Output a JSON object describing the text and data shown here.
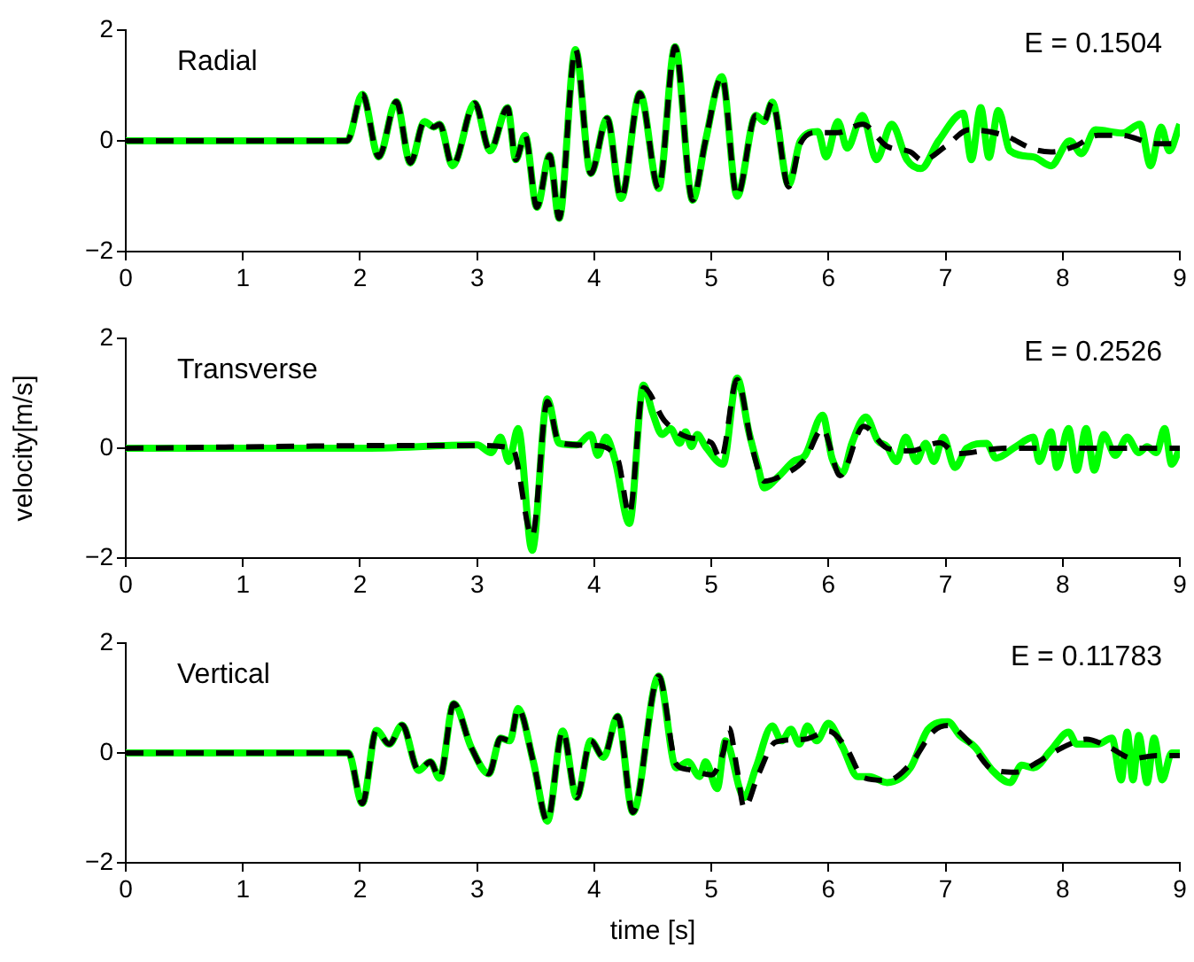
{
  "chart_data": [
    {
      "type": "line",
      "annotations": [
        "Radial",
        "E = 0.1504"
      ],
      "xlim": [
        0,
        9
      ],
      "xticks": [
        0,
        1,
        2,
        3,
        4,
        5,
        6,
        7,
        8,
        9
      ],
      "ylim": [
        -2,
        2
      ],
      "yticks": [
        -2,
        0,
        2
      ],
      "grid": false,
      "series": [
        {
          "color": "#00ff00",
          "line_style": "solid",
          "x": [
            0,
            1.89,
            2.02,
            2.16,
            2.31,
            2.43,
            2.55,
            2.63,
            2.68,
            2.79,
            2.98,
            3.11,
            3.26,
            3.33,
            3.41,
            3.51,
            3.62,
            3.7,
            3.84,
            3.97,
            4.11,
            4.23,
            4.39,
            4.55,
            4.69,
            4.84,
            4.95,
            5.09,
            5.22,
            5.38,
            5.45,
            5.52,
            5.66,
            5.76,
            5.91,
            5.98,
            6.08,
            6.16,
            6.29,
            6.41,
            6.54,
            6.67,
            6.79,
            6.94,
            7.15,
            7.22,
            7.3,
            7.37,
            7.45,
            7.55,
            7.75,
            7.9,
            8.06,
            8.16,
            8.28,
            8.51,
            8.66,
            8.75,
            8.84,
            8.91,
            9
          ],
          "values": [
            0,
            0,
            0.84,
            -0.29,
            0.71,
            -0.4,
            0.35,
            0.25,
            0.3,
            -0.45,
            0.68,
            -0.18,
            0.6,
            -0.34,
            0.1,
            -1.2,
            -0.26,
            -1.4,
            1.65,
            -0.59,
            0.41,
            -1.04,
            0.86,
            -0.86,
            1.7,
            -1.07,
            0,
            1.16,
            -1,
            0.46,
            0.35,
            0.7,
            -0.8,
            0,
            0.17,
            -0.29,
            0.35,
            -0.13,
            0.46,
            -0.34,
            0.3,
            -0.34,
            -0.5,
            0,
            0.5,
            -0.34,
            0.6,
            -0.3,
            0.55,
            -0.18,
            -0.29,
            -0.45,
            0,
            -0.23,
            0.2,
            0.14,
            0.3,
            -0.45,
            0.25,
            -0.18,
            0.3
          ]
        },
        {
          "color": "#000000",
          "line_style": "dashed",
          "x": [
            0,
            1.89,
            2.02,
            2.16,
            2.31,
            2.43,
            2.55,
            2.63,
            2.68,
            2.79,
            2.98,
            3.11,
            3.26,
            3.33,
            3.41,
            3.51,
            3.62,
            3.7,
            3.84,
            3.97,
            4.11,
            4.23,
            4.39,
            4.55,
            4.69,
            4.84,
            4.95,
            5.09,
            5.22,
            5.38,
            5.45,
            5.52,
            5.66,
            5.76,
            5.9,
            6.08,
            6.29,
            6.5,
            6.7,
            6.8,
            7,
            7.2,
            7.5,
            7.75,
            7.9,
            8.1,
            8.3,
            8.5,
            8.8,
            9
          ],
          "values": [
            0,
            0,
            0.84,
            -0.29,
            0.71,
            -0.4,
            0.35,
            0.25,
            0.3,
            -0.45,
            0.68,
            -0.18,
            0.6,
            -0.34,
            0.1,
            -1.2,
            -0.26,
            -1.4,
            1.65,
            -0.59,
            0.41,
            -1.04,
            0.86,
            -0.86,
            1.7,
            -1.07,
            0,
            1.16,
            -1,
            0.46,
            0.35,
            0.7,
            -0.83,
            -0.05,
            0.15,
            0.15,
            0.3,
            -0.1,
            -0.2,
            -0.35,
            -0.1,
            0.2,
            0.1,
            -0.15,
            -0.2,
            -0.1,
            0.1,
            0.1,
            -0.05,
            -0.05
          ]
        }
      ]
    },
    {
      "type": "line",
      "annotations": [
        "Transverse",
        "E = 0.2526"
      ],
      "ylabel": "velocity[m/s]",
      "xlim": [
        0,
        9
      ],
      "xticks": [
        0,
        1,
        2,
        3,
        4,
        5,
        6,
        7,
        8,
        9
      ],
      "ylim": [
        -2,
        2
      ],
      "yticks": [
        -2,
        0,
        2
      ],
      "grid": false,
      "series": [
        {
          "color": "#00ff00",
          "line_style": "solid",
          "x": [
            0,
            2,
            3,
            3.12,
            3.2,
            3.27,
            3.35,
            3.47,
            3.6,
            3.7,
            3.85,
            3.97,
            4.03,
            4.1,
            4.18,
            4.3,
            4.42,
            4.5,
            4.58,
            4.65,
            4.73,
            4.78,
            4.83,
            4.88,
            4.95,
            5.1,
            5.22,
            5.32,
            5.4,
            5.45,
            5.58,
            5.7,
            5.8,
            5.95,
            6.03,
            6.12,
            6.2,
            6.32,
            6.42,
            6.5,
            6.58,
            6.66,
            6.75,
            6.83,
            6.9,
            6.98,
            7.08,
            7.18,
            7.35,
            7.43,
            7.6,
            7.75,
            7.8,
            7.9,
            7.95,
            8.05,
            8.12,
            8.2,
            8.27,
            8.35,
            8.45,
            8.55,
            8.65,
            8.72,
            8.8,
            8.87,
            8.93,
            9
          ],
          "values": [
            0,
            0,
            0.06,
            -0.08,
            0.2,
            -0.24,
            0.36,
            -1.86,
            0.9,
            0.09,
            0.06,
            0.25,
            -0.13,
            0.2,
            -0.24,
            -1.37,
            1.15,
            0.63,
            0.25,
            0.36,
            0.09,
            0.3,
            0.03,
            0.25,
            0.03,
            -0.29,
            1.28,
            0.3,
            -0.35,
            -0.72,
            -0.5,
            -0.24,
            -0.13,
            0.6,
            -0.18,
            -0.45,
            0.09,
            0.57,
            0.14,
            0.03,
            -0.24,
            0.2,
            -0.24,
            0.09,
            -0.24,
            0.2,
            -0.35,
            0,
            0.09,
            -0.18,
            0.03,
            0.2,
            -0.24,
            0.3,
            -0.35,
            0.36,
            -0.4,
            0.36,
            -0.4,
            0.25,
            -0.13,
            0.2,
            -0.08,
            0.03,
            -0.08,
            0.36,
            -0.29,
            0
          ]
        },
        {
          "color": "#000000",
          "line_style": "dashed",
          "x": [
            0,
            2.5,
            3,
            3.3,
            3.47,
            3.6,
            3.7,
            4,
            4.2,
            4.3,
            4.42,
            4.6,
            4.8,
            5,
            5.08,
            5.22,
            5.35,
            5.45,
            5.6,
            5.8,
            5.95,
            6.1,
            6.3,
            6.5,
            6.7,
            6.95,
            7.1,
            7.5,
            9
          ],
          "values": [
            0,
            0.05,
            0.05,
            0,
            -1.6,
            0.85,
            0.1,
            0.05,
            -0.2,
            -1.2,
            1.1,
            0.5,
            0.2,
            0.1,
            -0.2,
            1.25,
            0,
            -0.6,
            -0.5,
            -0.2,
            0.35,
            -0.5,
            0.4,
            0,
            -0.05,
            0.1,
            -0.1,
            0,
            0
          ]
        }
      ]
    },
    {
      "type": "line",
      "annotations": [
        "Vertical",
        "E = 0.11783"
      ],
      "xlabel": "time [s]",
      "xlim": [
        0,
        9
      ],
      "xticks": [
        0,
        1,
        2,
        3,
        4,
        5,
        6,
        7,
        8,
        9
      ],
      "ylim": [
        -2,
        2
      ],
      "yticks": [
        -2,
        0,
        2
      ],
      "grid": false,
      "series": [
        {
          "color": "#00ff00",
          "line_style": "solid",
          "x": [
            0,
            1.9,
            2.02,
            2.14,
            2.25,
            2.36,
            2.5,
            2.6,
            2.68,
            2.8,
            2.95,
            3.1,
            3.2,
            3.28,
            3.35,
            3.48,
            3.6,
            3.73,
            3.85,
            3.97,
            4.08,
            4.2,
            4.33,
            4.55,
            4.7,
            4.8,
            4.9,
            4.95,
            5.05,
            5.12,
            5.28,
            5.38,
            5.52,
            5.6,
            5.68,
            5.75,
            5.82,
            5.9,
            6,
            6.12,
            6.25,
            6.35,
            6.5,
            6.7,
            6.85,
            7.02,
            7.12,
            7.25,
            7.4,
            7.55,
            7.65,
            7.75,
            7.9,
            8.05,
            8.12,
            8.3,
            8.42,
            8.5,
            8.55,
            8.6,
            8.65,
            8.72,
            8.78,
            8.85,
            8.93,
            9
          ],
          "values": [
            0,
            0,
            -0.92,
            0.41,
            0.16,
            0.51,
            -0.32,
            -0.16,
            -0.46,
            0.9,
            0.1,
            -0.38,
            0.27,
            0.22,
            0.81,
            -0.16,
            -1.24,
            0.4,
            -0.81,
            0.22,
            -0.08,
            0.67,
            -1.08,
            1.4,
            -0.27,
            -0.16,
            -0.43,
            -0.16,
            -0.65,
            0.22,
            -0.81,
            -0.27,
            0.49,
            0.22,
            0.43,
            0.16,
            0.49,
            0.22,
            0.54,
            0.11,
            -0.43,
            -0.43,
            -0.54,
            -0.27,
            0.43,
            0.57,
            0.32,
            0.11,
            -0.32,
            -0.54,
            -0.22,
            -0.27,
            0.05,
            0.38,
            0.16,
            0.16,
            0.27,
            -0.49,
            0.38,
            -0.49,
            0.32,
            -0.54,
            0.27,
            -0.49,
            0,
            0
          ]
        },
        {
          "color": "#000000",
          "line_style": "dashed",
          "x": [
            0,
            1.9,
            2.02,
            2.14,
            2.25,
            2.36,
            2.5,
            2.6,
            2.68,
            2.8,
            2.95,
            3.1,
            3.2,
            3.28,
            3.35,
            3.48,
            3.6,
            3.73,
            3.85,
            3.97,
            4.08,
            4.2,
            4.33,
            4.55,
            4.7,
            4.8,
            5,
            5.1,
            5.15,
            5.22,
            5.28,
            5.4,
            5.55,
            5.8,
            6,
            6.15,
            6.3,
            6.5,
            6.7,
            6.9,
            7.02,
            7.2,
            7.4,
            7.6,
            7.8,
            8,
            8.2,
            8.4,
            8.6,
            8.8,
            9
          ],
          "values": [
            0,
            0,
            -0.92,
            0.41,
            0.16,
            0.51,
            -0.32,
            -0.16,
            -0.46,
            0.9,
            0.1,
            -0.38,
            0.27,
            0.22,
            0.81,
            -0.16,
            -1.24,
            0.4,
            -0.81,
            0.22,
            -0.08,
            0.67,
            -1.08,
            1.4,
            -0.2,
            -0.3,
            -0.4,
            0,
            0.45,
            -0.3,
            -1,
            -0.4,
            0.2,
            0.25,
            0.4,
            0.1,
            -0.45,
            -0.5,
            -0.2,
            0.4,
            0.5,
            0.2,
            -0.3,
            -0.35,
            -0.15,
            0.1,
            0.25,
            0.1,
            -0.1,
            -0.05,
            -0.05
          ]
        }
      ]
    }
  ]
}
